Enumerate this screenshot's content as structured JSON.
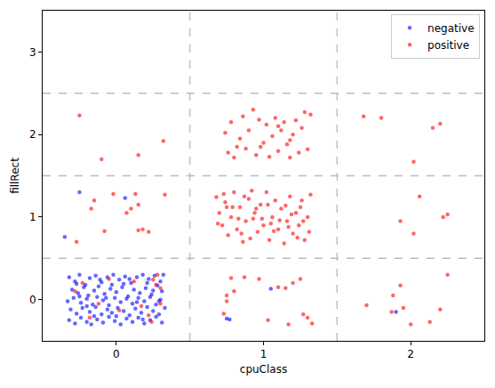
{
  "chart_data": {
    "type": "scatter",
    "x_label": "cpuClass",
    "y_label": "fillRect",
    "xlim": [
      -0.5,
      2.5
    ],
    "xticks": [
      0,
      1,
      2
    ],
    "ylim": [
      -0.5,
      3.5
    ],
    "yticks": [
      0,
      1,
      2,
      3
    ],
    "grid": false,
    "legend": "upper right",
    "marker": "circle",
    "reference_lines": {
      "x": [
        0.5,
        1.5
      ],
      "y": [
        0.5,
        1.5,
        2.5
      ],
      "line_style": "dashed",
      "color": "#bbbbbb"
    },
    "series": [
      {
        "name": "negative",
        "color": "#0000ff",
        "values": [
          [
            -0.32,
            0.27
          ],
          [
            -0.28,
            0.22
          ],
          [
            -0.25,
            0.3
          ],
          [
            -0.21,
            0.18
          ],
          [
            -0.18,
            0.26
          ],
          [
            -0.14,
            0.29
          ],
          [
            -0.1,
            0.21
          ],
          [
            -0.06,
            0.27
          ],
          [
            -0.02,
            0.3
          ],
          [
            0.02,
            0.24
          ],
          [
            0.06,
            0.28
          ],
          [
            0.1,
            0.2
          ],
          [
            0.14,
            0.27
          ],
          [
            0.18,
            0.3
          ],
          [
            0.22,
            0.25
          ],
          [
            0.26,
            0.29
          ],
          [
            0.3,
            0.22
          ],
          [
            0.32,
            0.3
          ],
          [
            -0.3,
            0.12
          ],
          [
            -0.26,
            0.08
          ],
          [
            -0.22,
            0.15
          ],
          [
            -0.19,
            0.05
          ],
          [
            -0.15,
            0.11
          ],
          [
            -0.12,
            0.16
          ],
          [
            -0.08,
            0.07
          ],
          [
            -0.04,
            0.13
          ],
          [
            0.0,
            0.09
          ],
          [
            0.04,
            0.15
          ],
          [
            0.08,
            0.04
          ],
          [
            0.12,
            0.12
          ],
          [
            0.16,
            0.08
          ],
          [
            0.2,
            0.14
          ],
          [
            0.24,
            0.06
          ],
          [
            0.28,
            0.17
          ],
          [
            0.31,
            0.1
          ],
          [
            -0.33,
            -0.02
          ],
          [
            -0.29,
            0.02
          ],
          [
            -0.24,
            -0.04
          ],
          [
            -0.2,
            0.01
          ],
          [
            -0.16,
            -0.06
          ],
          [
            -0.13,
            0.03
          ],
          [
            -0.09,
            -0.01
          ],
          [
            -0.05,
            -0.07
          ],
          [
            -0.01,
            0.02
          ],
          [
            0.03,
            -0.03
          ],
          [
            0.07,
            0.01
          ],
          [
            0.11,
            -0.05
          ],
          [
            0.15,
            0.02
          ],
          [
            0.19,
            -0.02
          ],
          [
            0.23,
            0.03
          ],
          [
            0.27,
            -0.06
          ],
          [
            0.3,
            0.0
          ],
          [
            -0.31,
            -0.12
          ],
          [
            -0.27,
            -0.17
          ],
          [
            -0.23,
            -0.1
          ],
          [
            -0.18,
            -0.15
          ],
          [
            -0.14,
            -0.09
          ],
          [
            -0.1,
            -0.18
          ],
          [
            -0.06,
            -0.12
          ],
          [
            -0.03,
            -0.16
          ],
          [
            0.01,
            -0.1
          ],
          [
            0.05,
            -0.14
          ],
          [
            0.09,
            -0.19
          ],
          [
            0.13,
            -0.11
          ],
          [
            0.17,
            -0.16
          ],
          [
            0.21,
            -0.09
          ],
          [
            0.25,
            -0.14
          ],
          [
            0.29,
            -0.18
          ],
          [
            0.33,
            -0.1
          ],
          [
            -0.32,
            -0.25
          ],
          [
            -0.28,
            -0.29
          ],
          [
            -0.24,
            -0.22
          ],
          [
            -0.2,
            -0.27
          ],
          [
            -0.17,
            -0.3
          ],
          [
            -0.13,
            -0.24
          ],
          [
            -0.09,
            -0.28
          ],
          [
            -0.05,
            -0.21
          ],
          [
            -0.01,
            -0.26
          ],
          [
            0.03,
            -0.3
          ],
          [
            0.07,
            -0.23
          ],
          [
            0.11,
            -0.27
          ],
          [
            0.15,
            -0.22
          ],
          [
            0.19,
            -0.29
          ],
          [
            0.23,
            -0.25
          ],
          [
            0.27,
            -0.21
          ],
          [
            0.31,
            -0.28
          ],
          [
            -0.27,
            0.19
          ],
          [
            -0.11,
            0.24
          ],
          [
            0.05,
            0.19
          ],
          [
            0.21,
            0.2
          ],
          [
            -0.2,
            -0.08
          ],
          [
            0.0,
            -0.2
          ],
          [
            0.14,
            -0.03
          ],
          [
            -0.07,
            0.02
          ],
          [
            0.25,
            0.11
          ],
          [
            -0.25,
            0.04
          ],
          [
            0.09,
            0.25
          ],
          [
            -0.15,
            -0.2
          ],
          [
            0.29,
            -0.02
          ],
          [
            -0.03,
            0.18
          ],
          [
            0.18,
            -0.24
          ],
          [
            -0.25,
            1.3
          ],
          [
            -0.35,
            0.76
          ],
          [
            0.06,
            1.23
          ],
          [
            0.77,
            -0.24
          ],
          [
            0.75,
            -0.23
          ],
          [
            1.05,
            0.13
          ],
          [
            1.9,
            -0.15
          ]
        ]
      },
      {
        "name": "positive",
        "color": "#ff0000",
        "values": [
          [
            -0.23,
            0.2
          ],
          [
            -0.12,
            -0.05
          ],
          [
            0.02,
            -0.13
          ],
          [
            0.25,
            0.24
          ],
          [
            0.28,
            0.3
          ],
          [
            0.27,
            0.18
          ],
          [
            0.22,
            -0.19
          ],
          [
            0.3,
            -0.05
          ],
          [
            -0.28,
            0.1
          ],
          [
            0.12,
            0.22
          ],
          [
            0.17,
            -0.08
          ],
          [
            -0.05,
            0.25
          ],
          [
            0.24,
            -0.27
          ],
          [
            -0.18,
            -0.22
          ],
          [
            0.3,
            0.14
          ],
          [
            -0.17,
            1.1
          ],
          [
            -0.15,
            1.2
          ],
          [
            -0.08,
            0.83
          ],
          [
            -0.02,
            1.28
          ],
          [
            0.07,
            1.05
          ],
          [
            0.1,
            1.1
          ],
          [
            0.13,
            1.28
          ],
          [
            0.18,
            0.85
          ],
          [
            0.22,
            0.82
          ],
          [
            0.33,
            1.27
          ],
          [
            -0.27,
            0.7
          ],
          [
            0.15,
            0.84
          ],
          [
            0.15,
            1.15
          ],
          [
            -0.25,
            2.23
          ],
          [
            0.32,
            1.92
          ],
          [
            -0.1,
            1.7
          ],
          [
            0.15,
            1.75
          ],
          [
            0.68,
            1.24
          ],
          [
            0.7,
            1.05
          ],
          [
            0.72,
            0.9
          ],
          [
            0.74,
            1.18
          ],
          [
            0.76,
            0.78
          ],
          [
            0.78,
            1.0
          ],
          [
            0.8,
            1.3
          ],
          [
            0.82,
            0.85
          ],
          [
            0.84,
            1.12
          ],
          [
            0.86,
            0.7
          ],
          [
            0.88,
            0.95
          ],
          [
            0.9,
            1.22
          ],
          [
            0.92,
            1.32
          ],
          [
            0.94,
            1.05
          ],
          [
            0.96,
            0.82
          ],
          [
            0.98,
            1.15
          ],
          [
            1.0,
            0.9
          ],
          [
            1.02,
            1.3
          ],
          [
            1.04,
            0.72
          ],
          [
            1.06,
            1.0
          ],
          [
            1.08,
            1.2
          ],
          [
            1.1,
            0.85
          ],
          [
            1.12,
            1.1
          ],
          [
            1.14,
            0.68
          ],
          [
            1.16,
            0.95
          ],
          [
            1.18,
            1.25
          ],
          [
            1.2,
            0.8
          ],
          [
            1.22,
            1.05
          ],
          [
            1.24,
            0.9
          ],
          [
            1.26,
            1.2
          ],
          [
            1.28,
            0.72
          ],
          [
            1.3,
            1.0
          ],
          [
            1.32,
            1.27
          ],
          [
            0.69,
            0.92
          ],
          [
            0.73,
            1.28
          ],
          [
            0.79,
            1.12
          ],
          [
            0.83,
            0.98
          ],
          [
            0.87,
            1.25
          ],
          [
            0.91,
            0.74
          ],
          [
            0.95,
            1.1
          ],
          [
            0.99,
            0.98
          ],
          [
            1.03,
            1.15
          ],
          [
            1.07,
            0.83
          ],
          [
            1.11,
            0.96
          ],
          [
            1.15,
            1.14
          ],
          [
            1.19,
            1.03
          ],
          [
            1.23,
            0.75
          ],
          [
            1.27,
            0.95
          ],
          [
            1.31,
            0.82
          ],
          [
            0.75,
            1.12
          ],
          [
            0.85,
            0.8
          ],
          [
            1.05,
            0.92
          ],
          [
            1.17,
            0.88
          ],
          [
            1.25,
            1.12
          ],
          [
            0.93,
            0.98
          ],
          [
            0.74,
            2.02
          ],
          [
            0.76,
            1.78
          ],
          [
            0.78,
            2.15
          ],
          [
            0.8,
            1.72
          ],
          [
            0.84,
            1.95
          ],
          [
            0.86,
            2.22
          ],
          [
            0.88,
            1.83
          ],
          [
            0.9,
            2.05
          ],
          [
            0.93,
            2.3
          ],
          [
            0.95,
            1.75
          ],
          [
            0.97,
            2.18
          ],
          [
            1.0,
            1.9
          ],
          [
            1.02,
            2.12
          ],
          [
            1.04,
            1.73
          ],
          [
            1.06,
            1.98
          ],
          [
            1.08,
            2.2
          ],
          [
            1.1,
            1.8
          ],
          [
            1.12,
            2.05
          ],
          [
            1.14,
            2.15
          ],
          [
            1.16,
            1.88
          ],
          [
            1.18,
            1.72
          ],
          [
            1.2,
            2.0
          ],
          [
            1.22,
            2.17
          ],
          [
            1.24,
            1.78
          ],
          [
            1.26,
            2.08
          ],
          [
            1.28,
            2.27
          ],
          [
            1.3,
            1.82
          ],
          [
            1.32,
            2.24
          ],
          [
            0.82,
            1.85
          ],
          [
            0.98,
            1.85
          ],
          [
            1.18,
            1.93
          ],
          [
            1.1,
            2.1
          ],
          [
            0.78,
            0.26
          ],
          [
            0.75,
            0.05
          ],
          [
            0.73,
            -0.17
          ],
          [
            0.87,
            0.27
          ],
          [
            0.97,
            0.25
          ],
          [
            1.03,
            -0.25
          ],
          [
            1.1,
            0.15
          ],
          [
            1.15,
            0.14
          ],
          [
            1.25,
            0.25
          ],
          [
            1.2,
            0.2
          ],
          [
            1.27,
            -0.18
          ],
          [
            1.3,
            -0.22
          ],
          [
            1.33,
            -0.29
          ],
          [
            1.17,
            -0.3
          ],
          [
            0.8,
            0.1
          ],
          [
            0.75,
            -0.02
          ],
          [
            1.68,
            2.22
          ],
          [
            1.8,
            2.2
          ],
          [
            2.15,
            2.08
          ],
          [
            2.2,
            2.13
          ],
          [
            2.02,
            1.67
          ],
          [
            2.06,
            1.25
          ],
          [
            1.93,
            0.95
          ],
          [
            2.02,
            0.8
          ],
          [
            2.22,
            1.0
          ],
          [
            2.25,
            1.03
          ],
          [
            1.7,
            -0.07
          ],
          [
            1.88,
            0.05
          ],
          [
            1.93,
            0.17
          ],
          [
            1.87,
            -0.15
          ],
          [
            2.0,
            -0.3
          ],
          [
            2.13,
            -0.27
          ],
          [
            2.2,
            -0.12
          ],
          [
            2.25,
            0.3
          ],
          [
            1.95,
            -0.1
          ]
        ]
      }
    ]
  }
}
